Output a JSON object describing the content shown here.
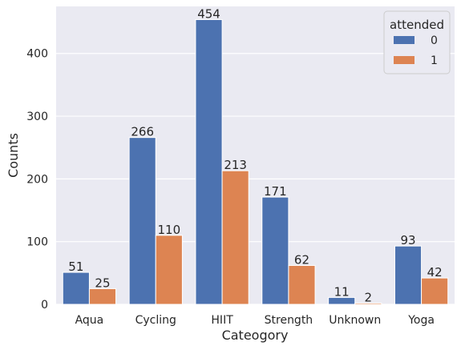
{
  "chart_data": {
    "type": "bar",
    "xlabel": "Cateogory",
    "ylabel": "Counts",
    "categories": [
      "Aqua",
      "Cycling",
      "HIIT",
      "Strength",
      "Unknown",
      "Yoga"
    ],
    "ylim": [
      0,
      475
    ],
    "yticks": [
      0,
      100,
      200,
      300,
      400
    ],
    "grid": true,
    "legend": {
      "title": "attended",
      "placement": "top-right"
    },
    "series": [
      {
        "name": "0",
        "color": "#4c72b0",
        "values": [
          51,
          266,
          454,
          171,
          11,
          93
        ]
      },
      {
        "name": "1",
        "color": "#dd8452",
        "values": [
          25,
          110,
          213,
          62,
          2,
          42
        ]
      }
    ]
  }
}
